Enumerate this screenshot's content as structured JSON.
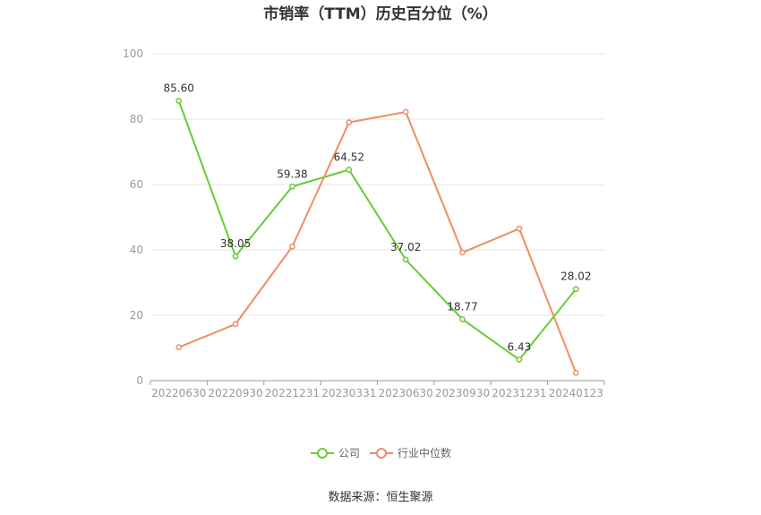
{
  "title": "市销率（TTM）历史百分位（%）",
  "source": "数据来源：恒生聚源",
  "colors": {
    "company": "#66cc33",
    "industry": "#f08c64",
    "grid": "#e6e6e6",
    "axis": "#999999"
  },
  "chart_data": {
    "type": "line",
    "title": "市销率（TTM）历史百分位（%）",
    "categories": [
      "20220630",
      "20220930",
      "20221231",
      "20230331",
      "20230630",
      "20230930",
      "20231231",
      "20240123"
    ],
    "ylim": [
      0,
      100
    ],
    "yticks": [
      0,
      20,
      40,
      60,
      80,
      100
    ],
    "grid": true,
    "legend": "bottom-center",
    "series": [
      {
        "name": "公司",
        "values": [
          85.6,
          38.05,
          59.38,
          64.52,
          37.02,
          18.77,
          6.43,
          28.02
        ],
        "labels": [
          "85.60",
          "38.05",
          "59.38",
          "64.52",
          "37.02",
          "18.77",
          "6.43",
          "28.02"
        ]
      },
      {
        "name": "行业中位数",
        "values": [
          10.2,
          17.3,
          41.0,
          79.0,
          82.2,
          39.2,
          46.5,
          2.4
        ]
      }
    ]
  }
}
